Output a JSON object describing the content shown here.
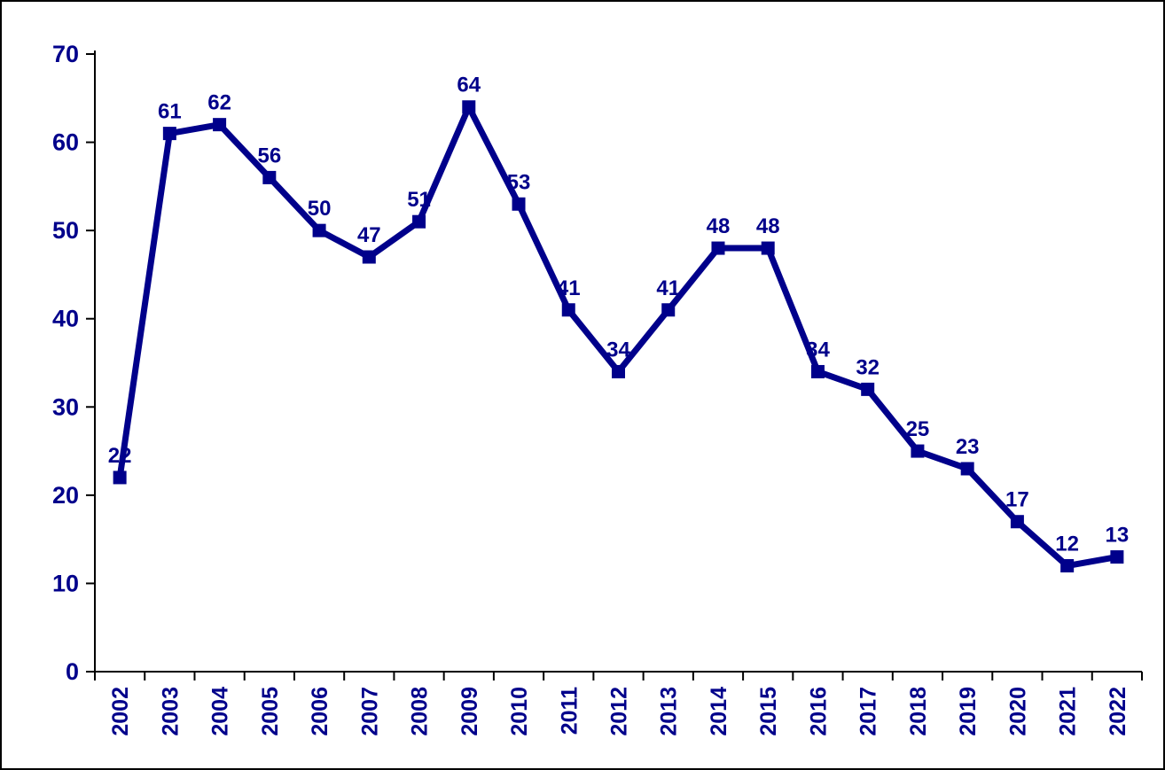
{
  "chart_data": {
    "type": "line",
    "title": "",
    "xlabel": "",
    "ylabel": "",
    "categories": [
      "2002",
      "2003",
      "2004",
      "2005",
      "2006",
      "2007",
      "2008",
      "2009",
      "2010",
      "2011",
      "2012",
      "2013",
      "2014",
      "2015",
      "2016",
      "2017",
      "2018",
      "2019",
      "2020",
      "2021",
      "2022"
    ],
    "series": [
      {
        "name": "values",
        "values": [
          22,
          61,
          62,
          56,
          50,
          47,
          51,
          64,
          53,
          41,
          34,
          41,
          48,
          48,
          34,
          32,
          25,
          23,
          17,
          12,
          13
        ]
      }
    ],
    "data_labels_visible": true,
    "ylim": [
      0,
      70
    ],
    "yticks": [
      0,
      10,
      20,
      30,
      40,
      50,
      60,
      70
    ],
    "grid": false,
    "legend_position": "none",
    "marker_shape": "square",
    "colors": {
      "line": "#00008B",
      "marker": "#00008B",
      "data_label": "#00008B",
      "tick_label": "#00008B",
      "axis": "#000000",
      "background": "#FFFFFF",
      "border": "#000000"
    }
  }
}
